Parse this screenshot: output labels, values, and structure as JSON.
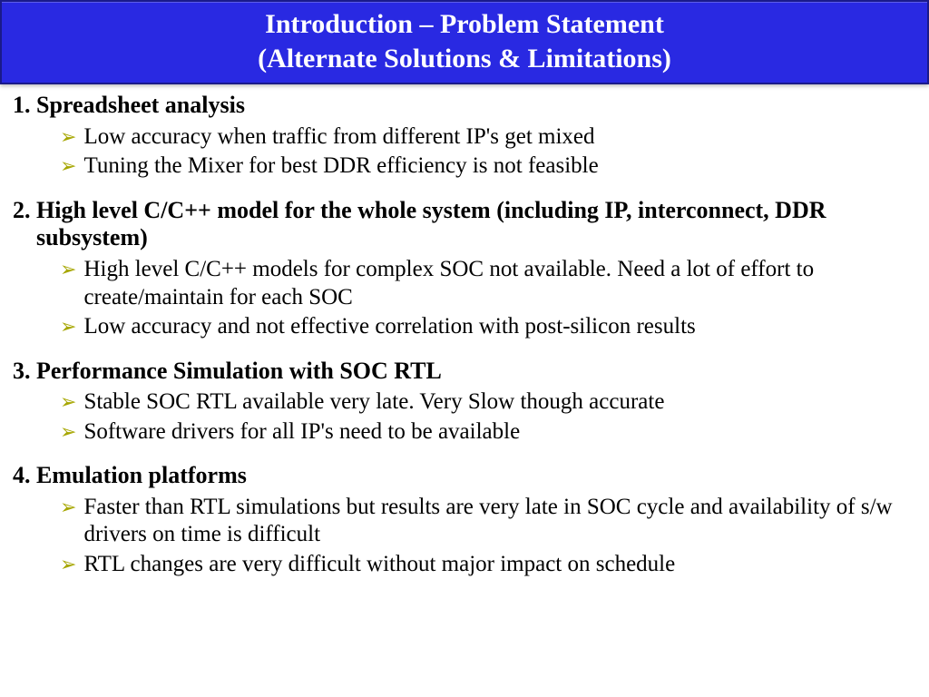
{
  "title": {
    "line1": "Introduction – Problem Statement",
    "line2": "(Alternate Solutions & Limitations)"
  },
  "colors": {
    "title_bg": "#2929e2",
    "title_border": "#1a1a8a",
    "title_text": "#ffffff",
    "arrow": "#a6a600",
    "body_text": "#000000",
    "page_bg": "#ffffff"
  },
  "typography": {
    "title_fontsize": 30,
    "heading_fontsize": 26,
    "body_fontsize": 25,
    "font_family": "Times New Roman"
  },
  "items": [
    {
      "num": "1.",
      "title": "Spreadsheet analysis",
      "subs": [
        "Low accuracy when traffic from different IP's get mixed",
        "Tuning the Mixer for best DDR efficiency is not feasible"
      ]
    },
    {
      "num": "2.",
      "title": "High level C/C++ model for the whole system (including IP, interconnect, DDR subsystem)",
      "subs": [
        "High level C/C++ models for complex SOC not available. Need a lot of effort to create/maintain for each SOC",
        "Low accuracy  and not effective correlation with post-silicon results"
      ]
    },
    {
      "num": "3.",
      "title": "Performance Simulation with SOC RTL",
      "subs": [
        "Stable SOC RTL available very late. Very Slow though accurate",
        "Software drivers for all IP's need to be available"
      ]
    },
    {
      "num": "4.",
      "title": "Emulation platforms",
      "subs": [
        "Faster than RTL simulations but results are very late in SOC cycle and availability of s/w drivers on time is difficult",
        "RTL changes are very difficult without major impact on schedule"
      ]
    }
  ]
}
